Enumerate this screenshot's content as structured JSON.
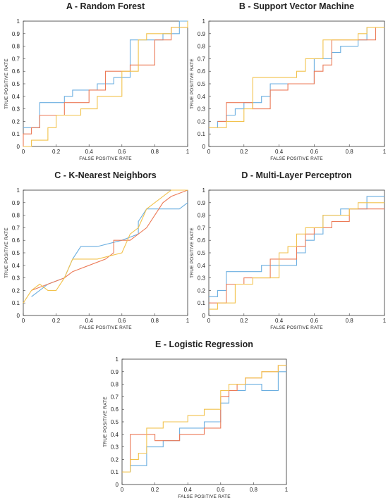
{
  "colors": {
    "blue": "#6aaee0",
    "red": "#ec7a57",
    "yellow": "#f2c24c",
    "axis": "#333333",
    "tick_text": "#222222"
  },
  "chart_data": [
    {
      "type": "line",
      "title": "A - Random Forest",
      "xlabel": "FALSE POSITIVE RATE",
      "ylabel": "TRUE POSITIVE RATE",
      "xlim": [
        0,
        1
      ],
      "ylim": [
        0,
        1
      ],
      "xticks": [
        "0",
        "0.2",
        "0.4",
        "0.6",
        "0.8",
        "1"
      ],
      "yticks": [
        "0",
        "0.1",
        "0.2",
        "0.3",
        "0.4",
        "0.5",
        "0.6",
        "0.7",
        "0.8",
        "0.9",
        "1"
      ],
      "grid": false,
      "series": [
        {
          "color": "blue",
          "x": [
            0,
            0.1,
            0.1,
            0.25,
            0.25,
            0.3,
            0.3,
            0.45,
            0.45,
            0.55,
            0.55,
            0.65,
            0.65,
            0.85,
            0.85,
            0.95,
            0.95,
            1
          ],
          "y": [
            0.15,
            0.15,
            0.35,
            0.35,
            0.4,
            0.4,
            0.45,
            0.45,
            0.5,
            0.5,
            0.55,
            0.55,
            0.85,
            0.85,
            0.9,
            0.9,
            1,
            1
          ]
        },
        {
          "color": "red",
          "x": [
            0,
            0,
            0.05,
            0.05,
            0.1,
            0.1,
            0.25,
            0.25,
            0.4,
            0.4,
            0.5,
            0.5,
            0.65,
            0.65,
            0.8,
            0.8,
            0.9,
            0.9,
            1
          ],
          "y": [
            0,
            0.1,
            0.1,
            0.15,
            0.15,
            0.25,
            0.25,
            0.35,
            0.35,
            0.45,
            0.45,
            0.6,
            0.6,
            0.65,
            0.65,
            0.85,
            0.85,
            0.95,
            0.95
          ]
        },
        {
          "color": "yellow",
          "x": [
            0,
            0.05,
            0.05,
            0.15,
            0.15,
            0.2,
            0.2,
            0.35,
            0.35,
            0.45,
            0.45,
            0.6,
            0.6,
            0.7,
            0.7,
            0.75,
            0.75,
            0.9,
            0.9,
            1,
            1
          ],
          "y": [
            0,
            0,
            0.05,
            0.05,
            0.15,
            0.15,
            0.25,
            0.25,
            0.3,
            0.3,
            0.4,
            0.4,
            0.6,
            0.6,
            0.85,
            0.85,
            0.9,
            0.9,
            0.95,
            0.95,
            1
          ]
        }
      ]
    },
    {
      "type": "line",
      "title": "B - Support Vector Machine",
      "xlabel": "FALSE POSITIVE RATE",
      "ylabel": "TRUE POSITIVE RATE",
      "xlim": [
        0,
        1
      ],
      "ylim": [
        0,
        1
      ],
      "xticks": [
        "0",
        "0.2",
        "0.4",
        "0.6",
        "0.8",
        "1"
      ],
      "yticks": [
        "0",
        "0.1",
        "0.2",
        "0.3",
        "0.4",
        "0.5",
        "0.6",
        "0.7",
        "0.8",
        "0.9",
        "1"
      ],
      "grid": false,
      "series": [
        {
          "color": "blue",
          "x": [
            0.05,
            0.05,
            0.1,
            0.1,
            0.15,
            0.15,
            0.2,
            0.2,
            0.3,
            0.3,
            0.35,
            0.35,
            0.6,
            0.6,
            0.7,
            0.7,
            0.75,
            0.75,
            0.85,
            0.85,
            0.9,
            0.9
          ],
          "y": [
            0.15,
            0.2,
            0.2,
            0.25,
            0.25,
            0.3,
            0.3,
            0.35,
            0.35,
            0.4,
            0.4,
            0.5,
            0.5,
            0.7,
            0.7,
            0.75,
            0.75,
            0.8,
            0.8,
            0.85,
            0.85,
            0.95
          ]
        },
        {
          "color": "red",
          "x": [
            0.05,
            0.1,
            0.1,
            0.25,
            0.25,
            0.35,
            0.35,
            0.45,
            0.45,
            0.6,
            0.6,
            0.65,
            0.65,
            0.7,
            0.7,
            0.95,
            0.95
          ],
          "y": [
            0.2,
            0.2,
            0.35,
            0.35,
            0.3,
            0.3,
            0.45,
            0.45,
            0.5,
            0.5,
            0.6,
            0.6,
            0.65,
            0.65,
            0.85,
            0.85,
            0.95
          ]
        },
        {
          "color": "yellow",
          "x": [
            0,
            0.1,
            0.1,
            0.2,
            0.2,
            0.25,
            0.25,
            0.5,
            0.5,
            0.55,
            0.55,
            0.65,
            0.65,
            0.85,
            0.85,
            0.9,
            0.9,
            1
          ],
          "y": [
            0.15,
            0.15,
            0.2,
            0.2,
            0.3,
            0.3,
            0.55,
            0.55,
            0.6,
            0.6,
            0.7,
            0.7,
            0.85,
            0.85,
            0.9,
            0.9,
            0.95,
            0.95
          ]
        }
      ]
    },
    {
      "type": "line",
      "title": "C - K-Nearest Neighbors",
      "xlabel": "FALSE POSITIVE RATE",
      "ylabel": "TRUE POSITIVE RATE",
      "xlim": [
        0,
        1
      ],
      "ylim": [
        0,
        1
      ],
      "xticks": [
        "0",
        "0.2",
        "0.4",
        "0.6",
        "0.8",
        "1"
      ],
      "yticks": [
        "0",
        "0.1",
        "0.2",
        "0.3",
        "0.4",
        "0.5",
        "0.6",
        "0.7",
        "0.8",
        "0.9",
        "1"
      ],
      "grid": false,
      "series": [
        {
          "color": "blue",
          "x": [
            0.05,
            0.15,
            0.25,
            0.3,
            0.35,
            0.45,
            0.6,
            0.7,
            0.7,
            0.75,
            0.85,
            0.95,
            1
          ],
          "y": [
            0.15,
            0.25,
            0.3,
            0.45,
            0.55,
            0.55,
            0.6,
            0.65,
            0.75,
            0.85,
            0.85,
            0.85,
            0.9
          ]
        },
        {
          "color": "red",
          "x": [
            0.05,
            0.15,
            0.25,
            0.3,
            0.4,
            0.5,
            0.55,
            0.55,
            0.65,
            0.75,
            0.85,
            0.9,
            1
          ],
          "y": [
            0.2,
            0.25,
            0.3,
            0.35,
            0.4,
            0.45,
            0.5,
            0.6,
            0.6,
            0.7,
            0.9,
            0.95,
            1
          ]
        },
        {
          "color": "yellow",
          "x": [
            0,
            0.05,
            0.1,
            0.15,
            0.2,
            0.25,
            0.3,
            0.45,
            0.6,
            0.65,
            0.7,
            0.75,
            0.8,
            0.9,
            1
          ],
          "y": [
            0.1,
            0.2,
            0.25,
            0.2,
            0.2,
            0.3,
            0.45,
            0.45,
            0.5,
            0.65,
            0.7,
            0.85,
            0.9,
            1,
            1
          ]
        }
      ]
    },
    {
      "type": "line",
      "title": "D - Multi-Layer Perceptron",
      "xlabel": "FALSE POSITIVE RATE",
      "ylabel": "TRUE POSITIVE RATE",
      "xlim": [
        0,
        1
      ],
      "ylim": [
        0,
        1
      ],
      "xticks": [
        "0",
        "0.2",
        "0.4",
        "0.6",
        "0.8",
        "1"
      ],
      "yticks": [
        "0",
        "0.1",
        "0.2",
        "0.3",
        "0.4",
        "0.5",
        "0.6",
        "0.7",
        "0.8",
        "0.9",
        "1"
      ],
      "grid": false,
      "series": [
        {
          "color": "blue",
          "x": [
            0,
            0.05,
            0.05,
            0.1,
            0.1,
            0.3,
            0.3,
            0.5,
            0.5,
            0.55,
            0.55,
            0.6,
            0.6,
            0.65,
            0.65,
            0.75,
            0.75,
            0.9,
            0.9,
            1
          ],
          "y": [
            0.15,
            0.15,
            0.2,
            0.2,
            0.35,
            0.35,
            0.4,
            0.4,
            0.5,
            0.5,
            0.6,
            0.6,
            0.65,
            0.65,
            0.8,
            0.8,
            0.85,
            0.85,
            0.95,
            0.95
          ]
        },
        {
          "color": "red",
          "x": [
            0,
            0.1,
            0.1,
            0.2,
            0.2,
            0.35,
            0.35,
            0.5,
            0.5,
            0.55,
            0.55,
            0.6,
            0.6,
            0.7,
            0.7,
            0.8,
            0.8,
            1
          ],
          "y": [
            0.1,
            0.1,
            0.25,
            0.25,
            0.3,
            0.3,
            0.45,
            0.45,
            0.55,
            0.55,
            0.65,
            0.65,
            0.7,
            0.7,
            0.75,
            0.75,
            0.85,
            0.85
          ]
        },
        {
          "color": "yellow",
          "x": [
            0,
            0.05,
            0.05,
            0.15,
            0.15,
            0.25,
            0.25,
            0.4,
            0.4,
            0.45,
            0.45,
            0.5,
            0.5,
            0.55,
            0.55,
            0.65,
            0.65,
            0.8,
            0.8,
            0.85,
            0.85,
            1
          ],
          "y": [
            0.05,
            0.05,
            0.1,
            0.1,
            0.25,
            0.25,
            0.3,
            0.3,
            0.5,
            0.5,
            0.55,
            0.55,
            0.65,
            0.65,
            0.7,
            0.7,
            0.8,
            0.8,
            0.85,
            0.85,
            0.9,
            0.9
          ]
        }
      ]
    },
    {
      "type": "line",
      "title": "E - Logistic Regression",
      "xlabel": "FALSE POSITIVE RATE",
      "ylabel": "TRUE POSITIVE RATE",
      "xlim": [
        0,
        1
      ],
      "ylim": [
        0,
        1
      ],
      "xticks": [
        "0",
        "0.2",
        "0.4",
        "0.6",
        "0.8",
        "1"
      ],
      "yticks": [
        "0",
        "0.1",
        "0.2",
        "0.3",
        "0.4",
        "0.5",
        "0.6",
        "0.7",
        "0.8",
        "0.9",
        "1"
      ],
      "grid": false,
      "series": [
        {
          "color": "blue",
          "x": [
            0.05,
            0.05,
            0.15,
            0.15,
            0.25,
            0.25,
            0.35,
            0.35,
            0.5,
            0.5,
            0.6,
            0.6,
            0.65,
            0.65,
            0.75,
            0.75,
            0.85,
            0.85,
            0.95,
            0.95,
            1
          ],
          "y": [
            0.1,
            0.15,
            0.15,
            0.3,
            0.3,
            0.35,
            0.35,
            0.45,
            0.45,
            0.5,
            0.5,
            0.65,
            0.65,
            0.75,
            0.75,
            0.8,
            0.8,
            0.75,
            0.75,
            0.9,
            0.9
          ]
        },
        {
          "color": "red",
          "x": [
            0.05,
            0.05,
            0.2,
            0.2,
            0.35,
            0.35,
            0.5,
            0.5,
            0.6,
            0.6,
            0.65,
            0.65,
            0.7,
            0.7,
            0.75,
            0.75,
            0.85,
            0.85,
            0.95,
            0.95,
            1
          ],
          "y": [
            0.15,
            0.4,
            0.4,
            0.35,
            0.35,
            0.4,
            0.4,
            0.45,
            0.45,
            0.7,
            0.7,
            0.75,
            0.75,
            0.8,
            0.8,
            0.85,
            0.85,
            0.9,
            0.9,
            0.95,
            0.95
          ]
        },
        {
          "color": "yellow",
          "x": [
            0,
            0.05,
            0.05,
            0.1,
            0.1,
            0.15,
            0.15,
            0.25,
            0.25,
            0.4,
            0.4,
            0.5,
            0.5,
            0.6,
            0.6,
            0.65,
            0.65,
            0.75,
            0.75,
            0.85,
            0.85,
            0.95,
            0.95,
            1
          ],
          "y": [
            0.1,
            0.1,
            0.2,
            0.2,
            0.25,
            0.25,
            0.45,
            0.45,
            0.5,
            0.5,
            0.55,
            0.55,
            0.6,
            0.6,
            0.75,
            0.75,
            0.8,
            0.8,
            0.85,
            0.85,
            0.9,
            0.9,
            0.95,
            0.95
          ]
        }
      ]
    }
  ]
}
